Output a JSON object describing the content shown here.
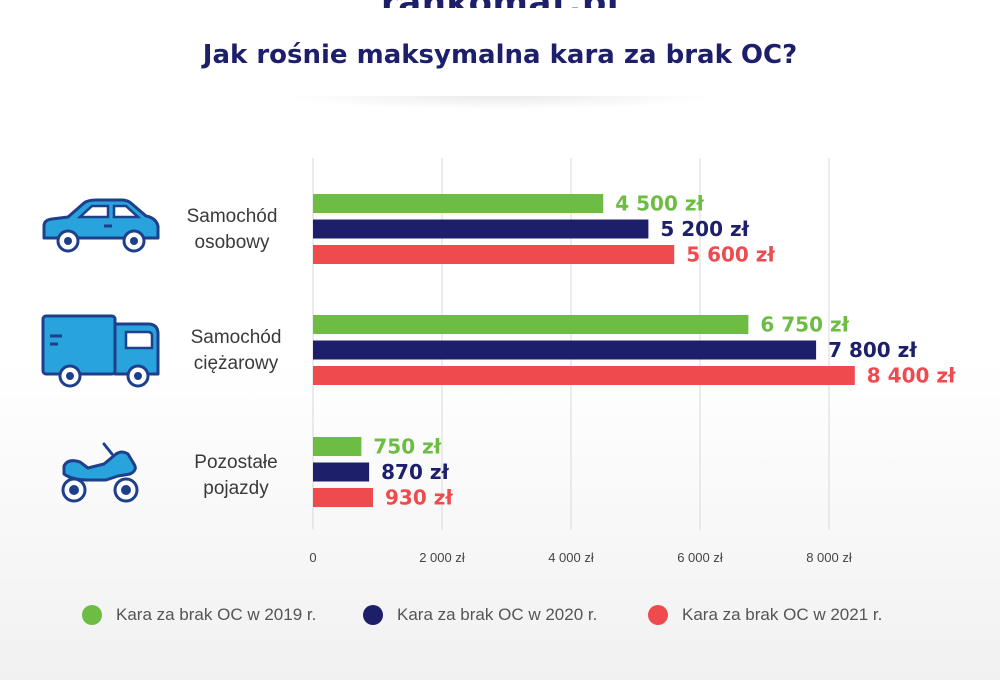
{
  "brand": {
    "logo_text": "rankomat.pl"
  },
  "colors": {
    "s2019": "#6dbd45",
    "s2020": "#1d1f6b",
    "s2021": "#ef4b4f",
    "icon_blue": "#29a3dc",
    "icon_stroke": "#1d3f8c"
  },
  "categories": [
    {
      "label_line1": "Samochód",
      "label_line2": "osobowy",
      "icon": "car-icon"
    },
    {
      "label_line1": "Samochód",
      "label_line2": "ciężarowy",
      "icon": "truck-icon"
    },
    {
      "label_line1": "Pozostałe",
      "label_line2": "pojazdy",
      "icon": "quad-icon"
    }
  ],
  "legend": [
    {
      "label": "Kara za brak OC w 2019 r.",
      "color": "#6dbd45"
    },
    {
      "label": "Kara za brak OC w 2020 r.",
      "color": "#1d1f6b"
    },
    {
      "label": "Kara za brak OC w 2021 r.",
      "color": "#ef4b4f"
    }
  ],
  "chart_data": {
    "type": "bar",
    "orientation": "horizontal",
    "title": "Jak rośnie maksymalna kara za brak OC?",
    "categories": [
      "Samochód osobowy",
      "Samochód ciężarowy",
      "Pozostałe pojazdy"
    ],
    "series": [
      {
        "name": "Kara za brak OC w 2019 r.",
        "color": "#6dbd45",
        "values": [
          4500,
          6750,
          750
        ],
        "labels": [
          "4 500 zł",
          "6 750 zł",
          "750 zł"
        ]
      },
      {
        "name": "Kara za brak OC w 2020 r.",
        "color": "#1d1f6b",
        "values": [
          5200,
          7800,
          870
        ],
        "labels": [
          "5 200 zł",
          "7 800 zł",
          "870 zł"
        ]
      },
      {
        "name": "Kara za brak OC w 2021 r.",
        "color": "#ef4b4f",
        "values": [
          5600,
          8400,
          930
        ],
        "labels": [
          "5 600 zł",
          "8 400 zł",
          "930 zł"
        ]
      }
    ],
    "xlim": [
      0,
      8000
    ],
    "xticks": [
      0,
      2000,
      4000,
      6000,
      8000
    ],
    "xtick_labels": [
      "0",
      "2 000 zł",
      "4 000 zł",
      "6 000 zł",
      "8 000 zł"
    ],
    "grid": "vertical",
    "legend_position": "bottom"
  }
}
